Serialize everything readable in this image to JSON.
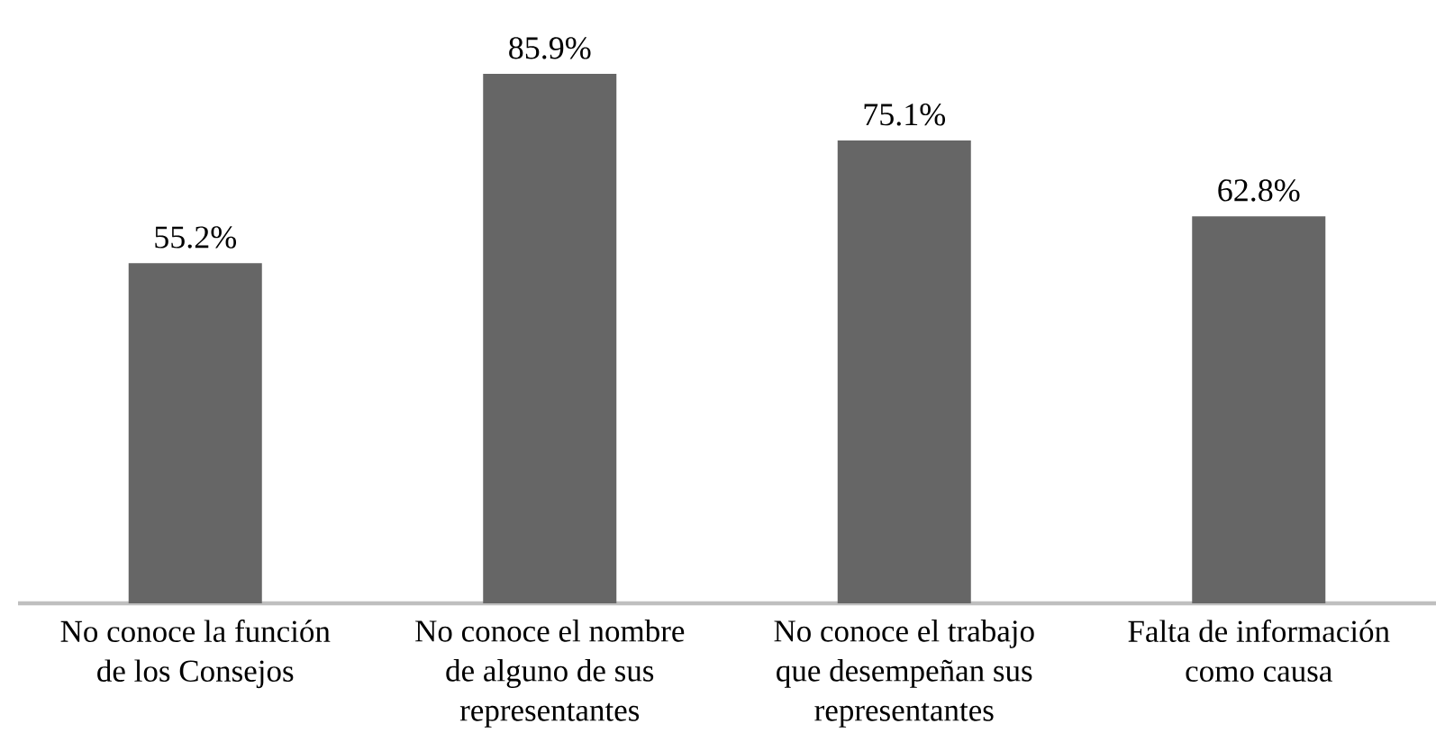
{
  "chart_data": {
    "type": "bar",
    "categories": [
      "No conoce la función de los Consejos",
      "No conoce el nombre de alguno de sus representantes",
      "No conoce el trabajo que desempeñan sus representantes",
      "Falta de información como causa"
    ],
    "values": [
      55.2,
      85.9,
      75.1,
      62.8
    ],
    "value_labels": [
      "55.2%",
      "85.9%",
      "75.1%",
      "62.8%"
    ],
    "color": "#666666"
  }
}
